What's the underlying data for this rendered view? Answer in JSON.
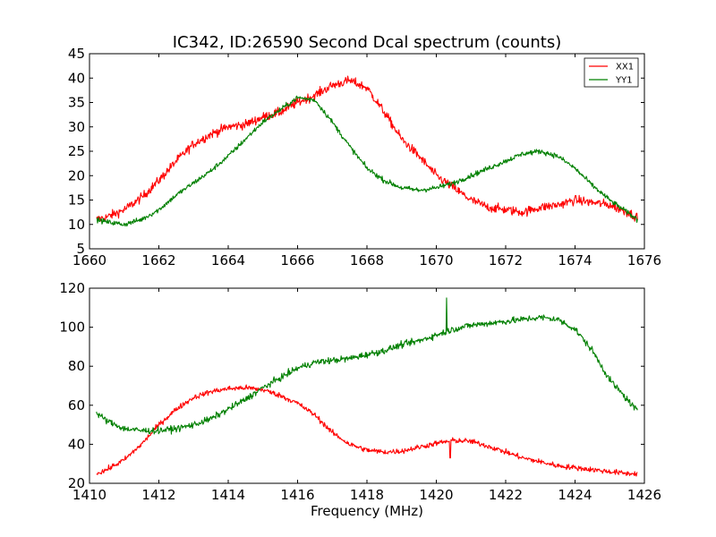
{
  "colors": {
    "XX1": "#ff0000",
    "YY1": "#008000",
    "background": "#ffffff",
    "axes": "#000000"
  },
  "chart_data": [
    {
      "type": "line",
      "title": "IC342, ID:26590 Second Dcal spectrum (counts)",
      "xlabel": "",
      "ylabel": "",
      "xlim": [
        1660,
        1676
      ],
      "ylim": [
        5,
        45
      ],
      "xticks": [
        1660,
        1662,
        1664,
        1666,
        1668,
        1670,
        1672,
        1674,
        1676
      ],
      "yticks": [
        5,
        10,
        15,
        20,
        25,
        30,
        35,
        40,
        45
      ],
      "legend": {
        "placement": "top-right",
        "entries": [
          "XX1",
          "YY1"
        ]
      },
      "grid": false,
      "noise": {
        "x": 0.016,
        "XX1": 0.9,
        "YY1": 0.5
      },
      "series": [
        {
          "name": "XX1",
          "color": "#ff0000",
          "x": [
            1660.2,
            1660.5,
            1661,
            1661.5,
            1662,
            1662.5,
            1663,
            1663.5,
            1664,
            1664.5,
            1665,
            1665.5,
            1666,
            1666.5,
            1667,
            1667.5,
            1668,
            1668.5,
            1669,
            1669.5,
            1670,
            1670.5,
            1671,
            1671.5,
            1672,
            1672.5,
            1673,
            1673.5,
            1674,
            1674.5,
            1675,
            1675.5,
            1675.8
          ],
          "y": [
            11,
            11.5,
            13,
            15.5,
            19,
            23,
            26.5,
            28.5,
            30,
            30.5,
            32,
            33,
            35,
            36.5,
            38.5,
            39.5,
            38,
            33,
            27.5,
            24,
            20,
            17.5,
            15,
            13.5,
            13,
            12.5,
            13.5,
            14,
            15,
            14.5,
            14,
            12.5,
            11.5
          ]
        },
        {
          "name": "YY1",
          "color": "#008000",
          "x": [
            1660.2,
            1660.5,
            1661,
            1661.5,
            1662,
            1662.5,
            1663,
            1663.5,
            1664,
            1664.5,
            1665,
            1665.5,
            1666,
            1666.5,
            1667,
            1667.5,
            1668,
            1668.5,
            1669,
            1669.5,
            1670,
            1670.5,
            1671,
            1671.5,
            1672,
            1672.5,
            1673,
            1673.5,
            1674,
            1674.5,
            1675,
            1675.5,
            1675.8
          ],
          "y": [
            11,
            10.5,
            10,
            11,
            13,
            16,
            18.5,
            21,
            24,
            27.5,
            31,
            33.5,
            36,
            35.5,
            31,
            26,
            21.5,
            19,
            17.5,
            17,
            17.5,
            18.5,
            20,
            21.5,
            23,
            24.5,
            25,
            24,
            21.5,
            18,
            15,
            12.5,
            11
          ]
        }
      ]
    },
    {
      "type": "line",
      "title": "",
      "xlabel": "Frequency (MHz)",
      "ylabel": "",
      "xlim": [
        1410,
        1426
      ],
      "ylim": [
        20,
        120
      ],
      "xticks": [
        1410,
        1412,
        1414,
        1416,
        1418,
        1420,
        1422,
        1424,
        1426
      ],
      "yticks": [
        20,
        40,
        60,
        80,
        100,
        120
      ],
      "grid": false,
      "noise": {
        "x": 0.016,
        "XX1": 1.3,
        "YY1": 1.6
      },
      "spikes": [
        {
          "series": "YY1",
          "x": 1420.3,
          "y": 115
        },
        {
          "series": "XX1",
          "x": 1420.4,
          "y": 33
        }
      ],
      "series": [
        {
          "name": "XX1",
          "color": "#ff0000",
          "x": [
            1410.2,
            1410.5,
            1411,
            1411.5,
            1412,
            1412.5,
            1413,
            1413.5,
            1414,
            1414.5,
            1415,
            1415.5,
            1416,
            1416.5,
            1417,
            1417.5,
            1418,
            1418.5,
            1419,
            1419.5,
            1420,
            1420.5,
            1421,
            1421.5,
            1422,
            1422.5,
            1423,
            1423.5,
            1424,
            1424.5,
            1425,
            1425.5,
            1425.8
          ],
          "y": [
            25,
            27,
            32,
            40,
            50,
            58,
            64,
            67,
            68.5,
            69,
            68,
            65,
            61,
            55,
            46,
            40,
            37,
            36,
            36.5,
            38.5,
            40.5,
            42,
            41.5,
            39,
            36,
            33,
            31,
            29,
            28,
            27,
            26,
            25,
            25
          ]
        },
        {
          "name": "YY1",
          "color": "#008000",
          "x": [
            1410.2,
            1410.5,
            1411,
            1411.5,
            1412,
            1412.5,
            1413,
            1413.5,
            1414,
            1414.5,
            1415,
            1415.5,
            1416,
            1416.5,
            1417,
            1417.5,
            1418,
            1418.5,
            1419,
            1419.5,
            1420,
            1420.5,
            1421,
            1421.5,
            1422,
            1422.5,
            1423,
            1423.5,
            1424,
            1424.5,
            1425,
            1425.5,
            1425.8
          ],
          "y": [
            56,
            52,
            48,
            47,
            47,
            48,
            50,
            53,
            58,
            63,
            69,
            74,
            79,
            82,
            83,
            84,
            86,
            88,
            91,
            93,
            96,
            99,
            101,
            102,
            103,
            104,
            105,
            104,
            99,
            88,
            73,
            63,
            57
          ]
        }
      ]
    }
  ]
}
